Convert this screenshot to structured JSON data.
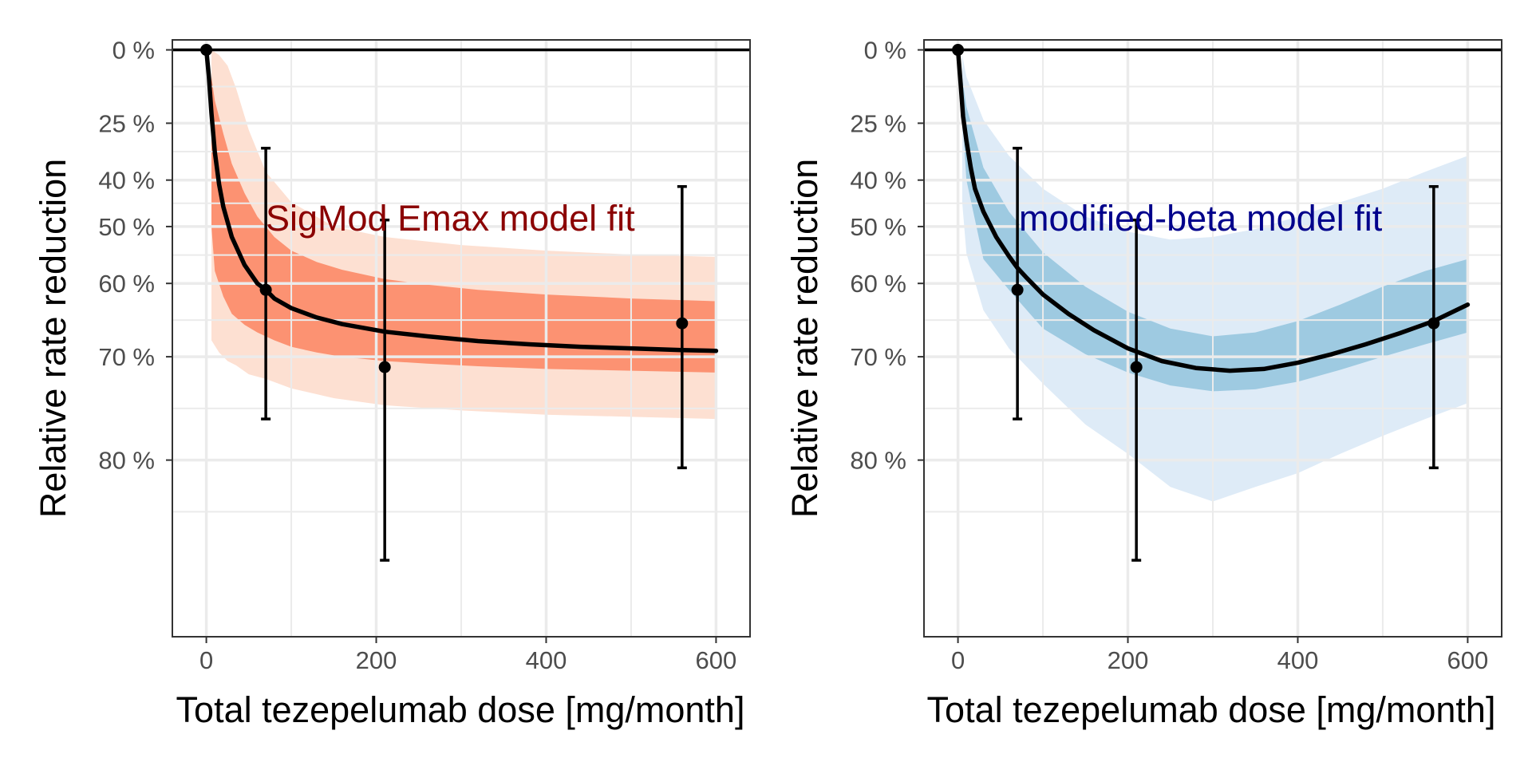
{
  "chart_data": [
    {
      "type": "line",
      "annotation": "SigMod Emax model fit",
      "annotation_color": "#8b0000",
      "xlabel": "Total tezepelumab dose [mg/month]",
      "ylabel": "Relative rate reduction",
      "xlim": [
        -40,
        640
      ],
      "x_ticks": [
        0,
        200,
        400,
        600
      ],
      "x_tick_labels": [
        "0",
        "200",
        "400",
        "600"
      ],
      "y_scale": "log of (1 - reduction), reversed",
      "ylim": [
        -0.04,
        0.9
      ],
      "y_ticks": [
        0,
        0.25,
        0.4,
        0.5,
        0.6,
        0.7,
        0.8
      ],
      "y_tick_labels": [
        "0 %",
        "25 %",
        "40 %",
        "50 %",
        "60 %",
        "70 %",
        "80 %"
      ],
      "grid": true,
      "zero_line": 0,
      "band_outer_color": "#fde0d2",
      "band_inner_color": "#fc9272",
      "curve": {
        "x": [
          0,
          3,
          6,
          10,
          15,
          20,
          30,
          45,
          60,
          70,
          80,
          100,
          130,
          160,
          210,
          260,
          320,
          380,
          440,
          500,
          560,
          600
        ],
        "y": [
          0,
          0.1,
          0.22,
          0.33,
          0.41,
          0.46,
          0.52,
          0.57,
          0.6,
          0.61,
          0.623,
          0.637,
          0.65,
          0.659,
          0.669,
          0.675,
          0.681,
          0.685,
          0.688,
          0.69,
          0.692,
          0.693
        ]
      },
      "band_inner": {
        "x": [
          6,
          10,
          20,
          30,
          45,
          60,
          80,
          100,
          130,
          160,
          210,
          260,
          320,
          400,
          500,
          600
        ],
        "lower": [
          0.1,
          0.18,
          0.28,
          0.36,
          0.43,
          0.48,
          0.52,
          0.545,
          0.565,
          0.578,
          0.593,
          0.602,
          0.61,
          0.617,
          0.623,
          0.627
        ],
        "upper": [
          0.5,
          0.58,
          0.62,
          0.645,
          0.66,
          0.67,
          0.68,
          0.688,
          0.695,
          0.7,
          0.705,
          0.708,
          0.711,
          0.714,
          0.716,
          0.718
        ]
      },
      "band_outer": {
        "x": [
          6,
          15,
          25,
          35,
          50,
          70,
          100,
          150,
          210,
          300,
          400,
          500,
          600
        ],
        "lower": [
          0,
          0.02,
          0.06,
          0.14,
          0.27,
          0.38,
          0.45,
          0.5,
          0.52,
          0.535,
          0.545,
          0.552,
          0.556
        ],
        "upper": [
          0.68,
          0.695,
          0.705,
          0.71,
          0.72,
          0.725,
          0.735,
          0.745,
          0.752,
          0.757,
          0.761,
          0.763,
          0.765
        ]
      },
      "points": [
        {
          "x": 0,
          "y": 0
        },
        {
          "x": 70,
          "y": 0.61,
          "lo": 0.32,
          "hi": 0.765
        },
        {
          "x": 210,
          "y": 0.712,
          "lo": 0.487,
          "hi": 0.865
        },
        {
          "x": 560,
          "y": 0.658,
          "lo": 0.415,
          "hi": 0.806
        }
      ]
    },
    {
      "type": "line",
      "annotation": "modified-beta model fit",
      "annotation_color": "#00008b",
      "xlabel": "Total tezepelumab dose [mg/month]",
      "ylabel": "Relative rate reduction",
      "xlim": [
        -40,
        640
      ],
      "x_ticks": [
        0,
        200,
        400,
        600
      ],
      "x_tick_labels": [
        "0",
        "200",
        "400",
        "600"
      ],
      "y_scale": "log of (1 - reduction), reversed",
      "ylim": [
        -0.04,
        0.9
      ],
      "y_ticks": [
        0,
        0.25,
        0.4,
        0.5,
        0.6,
        0.7,
        0.8
      ],
      "y_tick_labels": [
        "0 %",
        "25 %",
        "40 %",
        "50 %",
        "60 %",
        "70 %",
        "80 %"
      ],
      "grid": true,
      "zero_line": 0,
      "band_outer_color": "#deebf7",
      "band_inner_color": "#9ecae1",
      "curve": {
        "x": [
          0,
          3,
          6,
          10,
          15,
          20,
          30,
          45,
          60,
          70,
          80,
          100,
          130,
          160,
          200,
          240,
          280,
          320,
          360,
          400,
          440,
          480,
          520,
          560,
          600
        ],
        "y": [
          0,
          0.12,
          0.23,
          0.3,
          0.37,
          0.42,
          0.47,
          0.52,
          0.555,
          0.575,
          0.59,
          0.617,
          0.645,
          0.667,
          0.69,
          0.705,
          0.713,
          0.716,
          0.714,
          0.707,
          0.697,
          0.685,
          0.671,
          0.655,
          0.632
        ]
      },
      "band_inner": {
        "x": [
          0,
          10,
          30,
          60,
          100,
          150,
          200,
          250,
          300,
          350,
          400,
          450,
          500,
          550,
          600
        ],
        "lower": [
          0,
          0.2,
          0.37,
          0.47,
          0.548,
          0.605,
          0.642,
          0.665,
          0.675,
          0.67,
          0.655,
          0.632,
          0.605,
          0.58,
          0.56
        ],
        "upper": [
          0,
          0.4,
          0.56,
          0.61,
          0.665,
          0.697,
          0.718,
          0.732,
          0.738,
          0.736,
          0.728,
          0.715,
          0.7,
          0.685,
          0.67
        ]
      },
      "band_outer": {
        "x": [
          5,
          10,
          30,
          60,
          100,
          150,
          200,
          250,
          300,
          350,
          400,
          450,
          500,
          550,
          600
        ],
        "lower": [
          0.02,
          0.1,
          0.24,
          0.34,
          0.42,
          0.48,
          0.51,
          0.525,
          0.52,
          0.505,
          0.48,
          0.45,
          0.42,
          0.38,
          0.34
        ],
        "upper": [
          0.45,
          0.55,
          0.64,
          0.69,
          0.73,
          0.77,
          0.795,
          0.82,
          0.83,
          0.82,
          0.81,
          0.795,
          0.78,
          0.765,
          0.75
        ]
      },
      "points": [
        {
          "x": 0,
          "y": 0
        },
        {
          "x": 70,
          "y": 0.61,
          "lo": 0.32,
          "hi": 0.765
        },
        {
          "x": 210,
          "y": 0.712,
          "lo": 0.487,
          "hi": 0.865
        },
        {
          "x": 560,
          "y": 0.658,
          "lo": 0.415,
          "hi": 0.806
        }
      ]
    }
  ]
}
